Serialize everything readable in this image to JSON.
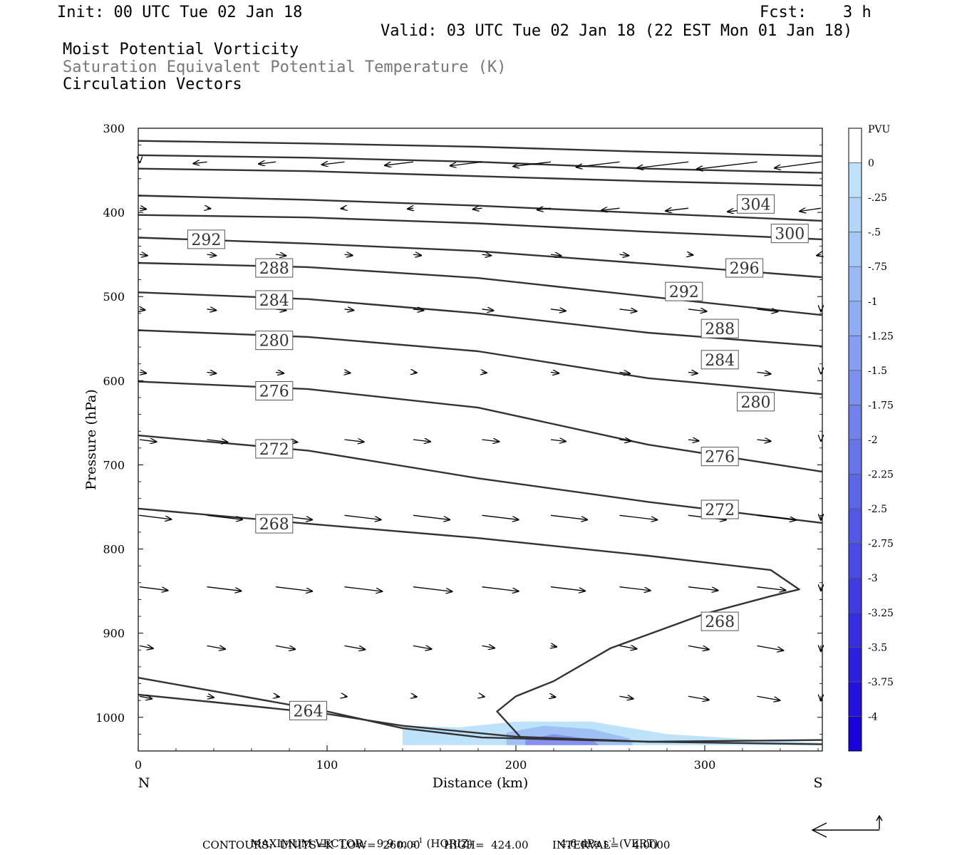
{
  "header": {
    "init": "Init: 00 UTC Tue 02 Jan 18",
    "fcst_label": "Fcst:",
    "fcst_value": "3 h",
    "valid": "Valid: 03 UTC Tue 02 Jan 18 (22 EST Mon 01 Jan 18)",
    "fields": [
      "Moist Potential Vorticity",
      "Saturation Equivalent Potential Temperature (K)",
      "Circulation Vectors"
    ]
  },
  "colors": {
    "contour": "#333333",
    "vector": "#000000",
    "field2_text": "#777777"
  },
  "chart_data": {
    "type": "cross-section",
    "xlabel": "Distance (km)",
    "ylabel": "Pressure (hPa)",
    "x_range": [
      0,
      362
    ],
    "y_range": [
      300,
      1040
    ],
    "x_ticks": [
      0,
      100,
      200,
      300
    ],
    "y_ticks": [
      300,
      400,
      500,
      600,
      700,
      800,
      900,
      1000
    ],
    "x_end_labels": {
      "left": "N",
      "right": "S"
    },
    "theta_contours": [
      {
        "label": "304",
        "pts": [
          [
            0,
            315
          ],
          [
            90,
            318
          ],
          [
            180,
            322
          ],
          [
            270,
            328
          ],
          [
            362,
            333
          ]
        ]
      },
      {
        "label": "300",
        "pts": [
          [
            0,
            332
          ],
          [
            90,
            335
          ],
          [
            180,
            340
          ],
          [
            270,
            348
          ],
          [
            362,
            353
          ]
        ]
      },
      {
        "label": "",
        "pts": [
          [
            0,
            348
          ],
          [
            90,
            351
          ],
          [
            180,
            357
          ],
          [
            270,
            363
          ],
          [
            362,
            368
          ]
        ]
      },
      {
        "label": "",
        "pts": [
          [
            0,
            380
          ],
          [
            90,
            385
          ],
          [
            180,
            392
          ],
          [
            270,
            401
          ],
          [
            362,
            410
          ]
        ]
      },
      {
        "label": "",
        "pts": [
          [
            0,
            403
          ],
          [
            90,
            406
          ],
          [
            180,
            413
          ],
          [
            270,
            423
          ],
          [
            362,
            432
          ]
        ]
      },
      {
        "label": "292",
        "pts": [
          [
            0,
            430
          ],
          [
            90,
            437
          ],
          [
            180,
            446
          ],
          [
            270,
            461
          ],
          [
            362,
            477
          ]
        ]
      },
      {
        "label": "288",
        "pts": [
          [
            0,
            460
          ],
          [
            90,
            465
          ],
          [
            180,
            478
          ],
          [
            270,
            500
          ],
          [
            362,
            522
          ]
        ]
      },
      {
        "label": "284",
        "pts": [
          [
            0,
            495
          ],
          [
            90,
            503
          ],
          [
            180,
            520
          ],
          [
            270,
            543
          ],
          [
            362,
            559
          ]
        ]
      },
      {
        "label": "280",
        "pts": [
          [
            0,
            540
          ],
          [
            90,
            548
          ],
          [
            180,
            565
          ],
          [
            270,
            597
          ],
          [
            362,
            616
          ]
        ]
      },
      {
        "label": "276",
        "pts": [
          [
            0,
            601
          ],
          [
            90,
            610
          ],
          [
            180,
            632
          ],
          [
            270,
            676
          ],
          [
            362,
            708
          ]
        ]
      },
      {
        "label": "272",
        "pts": [
          [
            0,
            665
          ],
          [
            90,
            683
          ],
          [
            180,
            716
          ],
          [
            270,
            744
          ],
          [
            362,
            769
          ]
        ]
      },
      {
        "label": "268",
        "pts": [
          [
            0,
            752
          ],
          [
            90,
            770
          ],
          [
            180,
            787
          ],
          [
            270,
            808
          ],
          [
            335,
            825
          ],
          [
            350,
            848
          ],
          [
            335,
            856
          ],
          [
            300,
            877
          ],
          [
            250,
            918
          ],
          [
            220,
            957
          ],
          [
            200,
            975
          ],
          [
            190,
            993
          ],
          [
            203,
            1025
          ]
        ]
      },
      {
        "label": "264",
        "pts": [
          [
            0,
            953
          ],
          [
            40,
            969
          ],
          [
            100,
            993
          ],
          [
            140,
            1013
          ],
          [
            182,
            1024
          ],
          [
            270,
            1029
          ],
          [
            362,
            1027
          ]
        ]
      },
      {
        "label": "",
        "pts": [
          [
            0,
            973
          ],
          [
            40,
            982
          ],
          [
            100,
            996
          ],
          [
            140,
            1010
          ],
          [
            200,
            1023
          ],
          [
            270,
            1029
          ],
          [
            362,
            1032
          ]
        ]
      }
    ],
    "theta_labels": [
      {
        "text": "304",
        "x": 327,
        "p": 390
      },
      {
        "text": "300",
        "x": 345,
        "p": 425
      },
      {
        "text": "292",
        "x": 36,
        "p": 432
      },
      {
        "text": "288",
        "x": 72,
        "p": 466
      },
      {
        "text": "296",
        "x": 321,
        "p": 466
      },
      {
        "text": "292",
        "x": 289,
        "p": 494
      },
      {
        "text": "284",
        "x": 72,
        "p": 504
      },
      {
        "text": "288",
        "x": 308,
        "p": 538
      },
      {
        "text": "280",
        "x": 72,
        "p": 552
      },
      {
        "text": "284",
        "x": 308,
        "p": 575
      },
      {
        "text": "276",
        "x": 72,
        "p": 612
      },
      {
        "text": "280",
        "x": 327,
        "p": 625
      },
      {
        "text": "272",
        "x": 72,
        "p": 681
      },
      {
        "text": "276",
        "x": 308,
        "p": 690
      },
      {
        "text": "272",
        "x": 308,
        "p": 753
      },
      {
        "text": "268",
        "x": 72,
        "p": 770
      },
      {
        "text": "268",
        "x": 308,
        "p": 886
      },
      {
        "text": "264",
        "x": 90,
        "p": 992
      }
    ],
    "pv_shading": [
      {
        "pv": -0.3,
        "color": "#bfe2fb",
        "pts": [
          [
            140,
            1010
          ],
          [
            170,
            1012
          ],
          [
            200,
            1005
          ],
          [
            240,
            1005
          ],
          [
            280,
            1020
          ],
          [
            330,
            1027
          ],
          [
            362,
            1030
          ],
          [
            362,
            1033
          ],
          [
            140,
            1033
          ]
        ]
      },
      {
        "pv": -0.6,
        "color": "#9fc0f5",
        "pts": [
          [
            195,
            1018
          ],
          [
            215,
            1010
          ],
          [
            240,
            1014
          ],
          [
            260,
            1025
          ],
          [
            262,
            1033
          ],
          [
            195,
            1033
          ]
        ]
      },
      {
        "pv": -1.0,
        "color": "#8890ee",
        "pts": [
          [
            205,
            1027
          ],
          [
            220,
            1020
          ],
          [
            240,
            1026
          ],
          [
            244,
            1033
          ],
          [
            205,
            1033
          ]
        ]
      }
    ],
    "vectors": [
      {
        "p": 340,
        "u": -1.2,
        "pts": [
          [
            0,
            -0.5
          ],
          [
            1,
            -1.2
          ],
          [
            2,
            -1.5
          ],
          [
            3,
            -2.0
          ],
          [
            4,
            -2.5
          ],
          [
            5,
            -2.8
          ],
          [
            6,
            -3.3
          ],
          [
            7,
            -3.8
          ],
          [
            8,
            -4.5
          ],
          [
            9,
            -5.3
          ],
          [
            10,
            -4.5
          ]
        ]
      },
      {
        "p": 395,
        "pts": [
          [
            0,
            0.7
          ],
          [
            1,
            0.3
          ],
          [
            2,
            0.1
          ],
          [
            3,
            -0.3
          ],
          [
            4,
            -0.5
          ],
          [
            5,
            -0.8
          ],
          [
            6,
            -1.2
          ],
          [
            7,
            -1.6
          ],
          [
            8,
            -2.0
          ],
          [
            9,
            -2.6
          ],
          [
            10,
            -2.3
          ]
        ]
      },
      {
        "p": 450,
        "pts": [
          [
            0,
            0.8
          ],
          [
            1,
            0.8
          ],
          [
            2,
            0.9
          ],
          [
            3,
            0.7
          ],
          [
            4,
            0.7
          ],
          [
            5,
            0.8
          ],
          [
            6,
            0.9
          ],
          [
            7,
            0.8
          ],
          [
            8,
            0.4
          ],
          [
            9,
            0.0
          ],
          [
            10,
            -0.8
          ]
        ]
      },
      {
        "p": 515,
        "pts": [
          [
            0,
            0.6
          ],
          [
            1,
            0.8
          ],
          [
            2,
            0.9
          ],
          [
            3,
            0.8
          ],
          [
            4,
            0.9
          ],
          [
            5,
            1.0
          ],
          [
            6,
            1.3
          ],
          [
            7,
            1.5
          ],
          [
            8,
            1.6
          ],
          [
            9,
            1.8
          ],
          [
            10,
            1.6
          ]
        ]
      },
      {
        "p": 590,
        "pts": [
          [
            0,
            0.7
          ],
          [
            1,
            0.8
          ],
          [
            2,
            0.7
          ],
          [
            3,
            0.5
          ],
          [
            4,
            0.3
          ],
          [
            5,
            0.4
          ],
          [
            6,
            0.7
          ],
          [
            7,
            0.9
          ],
          [
            8,
            0.8
          ],
          [
            9,
            1.2
          ],
          [
            10,
            1.0
          ]
        ]
      },
      {
        "p": 670,
        "pts": [
          [
            0,
            1.6
          ],
          [
            1,
            1.8
          ],
          [
            2,
            1.9
          ],
          [
            3,
            1.7
          ],
          [
            4,
            1.5
          ],
          [
            5,
            1.5
          ],
          [
            6,
            1.3
          ],
          [
            7,
            1.0
          ],
          [
            8,
            0.9
          ],
          [
            9,
            1.2
          ],
          [
            10,
            1.0
          ]
        ]
      },
      {
        "p": 760,
        "pts": [
          [
            0,
            2.9
          ],
          [
            1,
            3.1
          ],
          [
            2,
            3.2
          ],
          [
            3,
            3.2
          ],
          [
            4,
            3.2
          ],
          [
            5,
            3.2
          ],
          [
            6,
            3.2
          ],
          [
            7,
            3.3
          ],
          [
            8,
            3.3
          ],
          [
            9,
            3.4
          ],
          [
            10,
            3.5
          ]
        ]
      },
      {
        "p": 845,
        "pts": [
          [
            0,
            2.6
          ],
          [
            1,
            3.0
          ],
          [
            2,
            3.2
          ],
          [
            3,
            3.3
          ],
          [
            4,
            3.4
          ],
          [
            5,
            3.2
          ],
          [
            6,
            3.0
          ],
          [
            7,
            2.7
          ],
          [
            8,
            2.6
          ],
          [
            9,
            2.5
          ],
          [
            10,
            2.8
          ]
        ]
      },
      {
        "p": 915,
        "pts": [
          [
            0,
            1.3
          ],
          [
            1,
            1.6
          ],
          [
            2,
            1.7
          ],
          [
            3,
            1.8
          ],
          [
            4,
            1.6
          ],
          [
            5,
            1.1
          ],
          [
            6,
            0.5
          ],
          [
            7,
            1.5
          ],
          [
            8,
            1.8
          ],
          [
            9,
            2.3
          ],
          [
            10,
            2.7
          ]
        ]
      },
      {
        "p": 975,
        "pts": [
          [
            0,
            1.2
          ],
          [
            1,
            0.6
          ],
          [
            2,
            0.3
          ],
          [
            3,
            0.2
          ],
          [
            4,
            0.3
          ],
          [
            5,
            0.2
          ],
          [
            6,
            0.4
          ],
          [
            7,
            1.2
          ],
          [
            8,
            1.8
          ],
          [
            9,
            2.0
          ],
          [
            10,
            2.1
          ]
        ]
      }
    ],
    "colorbar": {
      "title": "PVU",
      "labels": [
        "0",
        "-.25",
        "-.5",
        "-.75",
        "-1",
        "-1.25",
        "-1.5",
        "-1.75",
        "-2",
        "-2.25",
        "-2.5",
        "-2.75",
        "-3",
        "-3.25",
        "-3.5",
        "-3.75",
        "-4"
      ],
      "colors": [
        "#ffffff",
        "#bfe2fb",
        "#b2d5f8",
        "#a6c8f6",
        "#9bbaf4",
        "#90acf2",
        "#869ef0",
        "#7c90ee",
        "#7282ec",
        "#6874ea",
        "#5e66e8",
        "#5458e6",
        "#4a4ae4",
        "#403ce2",
        "#362ee0",
        "#2c20de",
        "#2212dc",
        "#1804da"
      ]
    }
  },
  "footer": {
    "max_vector_label": "MAXIMUM VECTOR:",
    "horiz_value": "9.9 m s",
    "horiz_exp": "-1",
    "horiz_unit": "(HORIZ)",
    "vert_value": "4.6 dPa s",
    "vert_exp": "-1",
    "vert_unit": "(VERT)",
    "contours_line": "CONTOURS:  UNITS=K  LOW=  260.00       HIGH=  424.00       INTERVAL=    4.0000"
  }
}
